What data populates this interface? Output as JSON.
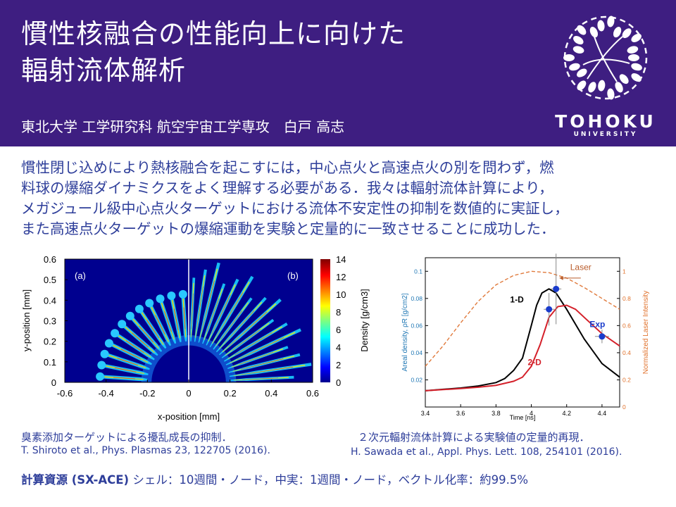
{
  "header": {
    "title_line1": "慣性核融合の性能向上に向けた",
    "title_line2": "輻射流体解析",
    "author": "東北大学 工学研究科 航空宇宙工学専攻　白戸 高志",
    "logo_main": "TOHOKU",
    "logo_sub": "UNIVERSITY",
    "bg_color": "#3e1e81"
  },
  "summary": {
    "lines": [
      "慣性閉じ込めにより熱核融合を起こすには，中心点火と高速点火の別を問わず，燃",
      "料球の爆縮ダイナミクスをよく理解する必要がある．我々は輻射流体計算により，",
      "メガジュール級中心点火ターゲットにおける流体不安定性の抑制を数値的に実証し，",
      "また高速点火ターゲットの爆縮運動を実験と定量的に一致させることに成功した．"
    ],
    "text_color": "#2e3e9a"
  },
  "figure_left": {
    "panel_a": "(a)",
    "panel_b": "(b)",
    "xlabel": "x-position [mm]",
    "ylabel": "y-position [mm]",
    "colorbar_label": "Density [g/cm3]",
    "caption": "臭素添加ターゲットによる擾乱成長の抑制．",
    "reference": "T. Shiroto et al., Phys. Plasmas 23, 122705 (2016)."
  },
  "figure_right": {
    "caption": "２次元輻射流体計算による実験値の定量的再現．",
    "reference": "H. Sawada et al., Appl. Phys. Lett. 108, 254101 (2016)."
  },
  "footer": {
    "resources_label": "計算資源 (SX-ACE)",
    "resources_text": " シェル：10週間・ノード，中実：1週間・ノード，ベクトル化率：約99.5%"
  },
  "chart_data": [
    {
      "type": "heatmap",
      "xlabel": "x-position [mm]",
      "ylabel": "y-position [mm]",
      "xlim": [
        -0.6,
        0.6
      ],
      "ylim": [
        0,
        0.6
      ],
      "x_ticks": [
        "-0.6",
        "-0.4",
        "-0.2",
        "0",
        "0.2",
        "0.4",
        "0.6"
      ],
      "y_ticks": [
        "0",
        "0.1",
        "0.2",
        "0.3",
        "0.4",
        "0.5",
        "0.6"
      ],
      "colorbar": {
        "label": "Density [g/cm3]",
        "range": [
          0,
          14
        ],
        "ticks": [
          "0",
          "2",
          "4",
          "6",
          "8",
          "10",
          "12",
          "14"
        ]
      },
      "panels": [
        "(a)",
        "(b)"
      ],
      "spikes": {
        "left": {
          "count": 12,
          "inner_radius": 0.2,
          "outer_radius": 0.43
        },
        "right": {
          "count": 16,
          "inner_radius": 0.2,
          "outer_radius": 0.6
        }
      }
    },
    {
      "type": "line",
      "xlabel": "Time [ns]",
      "ylabel": "Areal density, ρR [g/cm2]",
      "y2label": "Normalized Laser Intensity",
      "xlim": [
        3.4,
        4.5
      ],
      "ylim": [
        0,
        0.11
      ],
      "y2lim": [
        0,
        1.1
      ],
      "x_ticks": [
        "3.4",
        "3.6",
        "3.8",
        "4",
        "4.2",
        "4.4"
      ],
      "y_ticks": [
        "0.02",
        "0.04",
        "0.06",
        "0.08",
        "0.1"
      ],
      "y2_ticks": [
        "0",
        "0.2",
        "0.4",
        "0.6",
        "0.8",
        "1"
      ],
      "series": [
        {
          "name": "1-D",
          "color": "#000000",
          "x": [
            3.4,
            3.5,
            3.6,
            3.7,
            3.8,
            3.85,
            3.9,
            3.95,
            4.0,
            4.03,
            4.06,
            4.1,
            4.14,
            4.2,
            4.3,
            4.4,
            4.5
          ],
          "y": [
            0.012,
            0.013,
            0.014,
            0.0155,
            0.018,
            0.021,
            0.027,
            0.036,
            0.06,
            0.075,
            0.084,
            0.087,
            0.084,
            0.072,
            0.05,
            0.032,
            0.022
          ]
        },
        {
          "name": "2-D",
          "color": "#d4202a",
          "x": [
            3.4,
            3.5,
            3.6,
            3.7,
            3.8,
            3.9,
            3.95,
            4.0,
            4.05,
            4.1,
            4.15,
            4.2,
            4.25,
            4.3,
            4.4,
            4.5
          ],
          "y": [
            0.012,
            0.0128,
            0.0136,
            0.0146,
            0.016,
            0.019,
            0.022,
            0.03,
            0.046,
            0.066,
            0.074,
            0.075,
            0.072,
            0.066,
            0.054,
            0.045
          ]
        },
        {
          "name": "Laser",
          "color": "#e07a3c",
          "style": "dashed",
          "axis": "right",
          "x": [
            3.4,
            3.5,
            3.6,
            3.7,
            3.8,
            3.9,
            4.0,
            4.1,
            4.2,
            4.3,
            4.4,
            4.5
          ],
          "y": [
            0.3,
            0.45,
            0.62,
            0.78,
            0.9,
            0.97,
            1.0,
            0.99,
            0.95,
            0.88,
            0.8,
            0.72
          ]
        }
      ],
      "points": {
        "name": "Exp",
        "color": "#1a3ccc",
        "data": [
          {
            "x": 4.1,
            "y": 0.072,
            "yerr": 0.012,
            "xerr": 0.03
          },
          {
            "x": 4.14,
            "y": 0.087,
            "yerr": 0.026,
            "xerr": 0.03
          },
          {
            "x": 4.4,
            "y": 0.052,
            "yerr": 0.005,
            "xerr": 0.04
          }
        ]
      },
      "axis_label_colors": {
        "left": "#1f77b4",
        "right": "#e0722c"
      }
    }
  ]
}
